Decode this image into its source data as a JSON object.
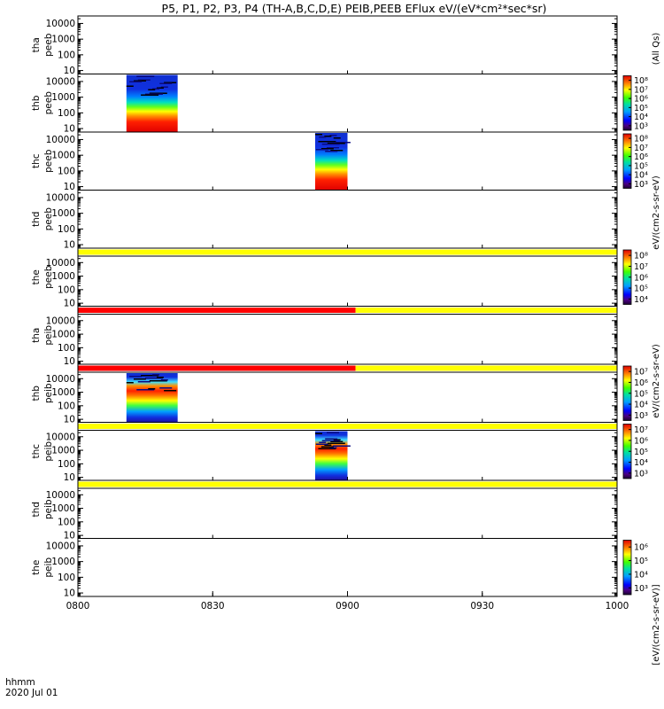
{
  "title": "P5, P1, P2, P3, P4 (TH-A,B,C,D,E) PEIB,PEEB EFlux eV/(eV*cm²*sec*sr)",
  "footer": {
    "time_label": "hhmm",
    "date_label": "2020 Jul 01"
  },
  "colors": {
    "flag_yellow": "#ffff00",
    "flag_red": "#ff0000",
    "background": "#ffffff"
  },
  "colorbar_titles": {
    "all_qs": "(All Qs)",
    "units_cm2": "eV/(cm2-s-sr-eV)",
    "units_bracket": "[eV/(cm2-s-sr-eV)]"
  },
  "chart_data": {
    "type": "heatmap",
    "x_tick_labels": [
      "0800",
      "0830",
      "0900",
      "0930",
      "1000"
    ],
    "x_ticks_hours": [
      8.0,
      8.5,
      9.0,
      9.5,
      10.0
    ],
    "xlim_hours": [
      8.0,
      10.0
    ],
    "y_scale": "log",
    "ylim_eV": [
      6,
      30000
    ],
    "y_tick_labels": [
      "10",
      "100",
      "1000",
      "10000"
    ],
    "panels": [
      {
        "label": [
          "tha",
          "peeb"
        ],
        "bursts": [],
        "flag": null
      },
      {
        "label": [
          "thb",
          "peeb"
        ],
        "bursts": [
          {
            "start": 8.18,
            "end": 8.37
          }
        ],
        "flag": null,
        "colorbar": {
          "labels": [
            "10³",
            "10⁴",
            "10⁵",
            "10⁶",
            "10⁷",
            "10⁸"
          ],
          "top_label": "10⁸"
        }
      },
      {
        "label": [
          "thc",
          "peeb"
        ],
        "bursts": [
          {
            "start": 8.88,
            "end": 9.0
          }
        ],
        "flag": null,
        "colorbar": {
          "labels": [
            "10³",
            "10⁴",
            "10⁵",
            "10⁶",
            "10⁷",
            "10⁸"
          ],
          "top_label": "10⁸"
        }
      },
      {
        "label": [
          "thd",
          "peeb"
        ],
        "bursts": [],
        "flag": null
      },
      {
        "label": [
          "the",
          "peeb"
        ],
        "bursts": [],
        "flag": {
          "segments": [
            {
              "start": 8.0,
              "end": 10.0,
              "color": "yellow"
            }
          ]
        },
        "colorbar": {
          "labels": [
            "10⁴",
            "10⁵",
            "10⁶",
            "10⁷",
            "10⁸"
          ],
          "top_label": "10⁸"
        }
      },
      {
        "label": [
          "tha",
          "peib"
        ],
        "bursts": [],
        "flag": {
          "segments": [
            {
              "start": 8.0,
              "end": 9.03,
              "color": "red"
            },
            {
              "start": 9.03,
              "end": 10.0,
              "color": "yellow"
            }
          ]
        }
      },
      {
        "label": [
          "thb",
          "peib"
        ],
        "bursts": [
          {
            "start": 8.18,
            "end": 8.37
          }
        ],
        "flag": {
          "segments": [
            {
              "start": 8.0,
              "end": 9.03,
              "color": "red"
            },
            {
              "start": 9.03,
              "end": 10.0,
              "color": "yellow"
            }
          ]
        },
        "colorbar": {
          "labels": [
            "10³",
            "10⁴",
            "10⁵",
            "10⁶",
            "10⁷"
          ],
          "top_label": "10⁷"
        }
      },
      {
        "label": [
          "thc",
          "peib"
        ],
        "bursts": [
          {
            "start": 8.88,
            "end": 9.0
          }
        ],
        "flag": {
          "segments": [
            {
              "start": 8.0,
              "end": 10.0,
              "color": "yellow"
            }
          ]
        },
        "colorbar": {
          "labels": [
            "10³",
            "10⁴",
            "10⁵",
            "10⁶",
            "10⁷"
          ],
          "top_label": "10⁷"
        }
      },
      {
        "label": [
          "thd",
          "peib"
        ],
        "bursts": [],
        "flag": {
          "segments": [
            {
              "start": 8.0,
              "end": 10.0,
              "color": "yellow"
            }
          ]
        }
      },
      {
        "label": [
          "the",
          "peib"
        ],
        "bursts": [],
        "flag": null,
        "colorbar": {
          "labels": [
            "10³",
            "10⁴",
            "10⁵",
            "10⁶"
          ],
          "top_label": "10⁶"
        }
      }
    ]
  }
}
